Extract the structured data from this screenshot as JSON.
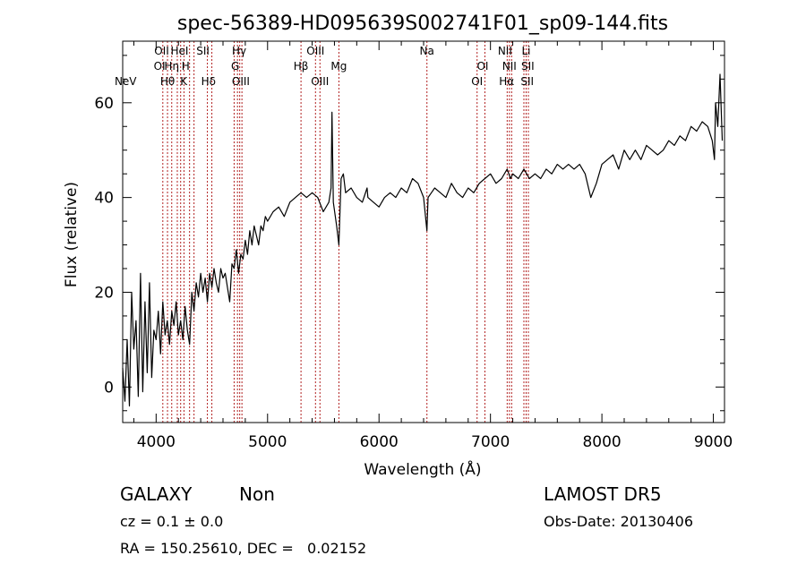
{
  "chart_data": {
    "type": "line",
    "title": "spec-56389-HD095639S002741F01_sp09-144.fits",
    "xlabel": "Wavelength (Å)",
    "ylabel": "Flux (relative)",
    "xlim": [
      3700,
      9100
    ],
    "ylim": [
      -7.5,
      73
    ],
    "xticks": [
      4000,
      5000,
      6000,
      7000,
      8000,
      9000
    ],
    "yticks": [
      0,
      20,
      40,
      60
    ],
    "grid": false,
    "line_color": "#000000",
    "marker_color": "#b22222",
    "series": [
      {
        "x": [
          3700,
          3720,
          3740,
          3760,
          3780,
          3800,
          3820,
          3840,
          3860,
          3880,
          3900,
          3920,
          3940,
          3960,
          3980,
          4000,
          4020,
          4040,
          4060,
          4080,
          4100,
          4120,
          4140,
          4160,
          4180,
          4200,
          4220,
          4240,
          4260,
          4280,
          4300,
          4320,
          4340,
          4360,
          4380,
          4400,
          4420,
          4440,
          4460,
          4480,
          4500,
          4520,
          4540,
          4560,
          4580,
          4600,
          4620,
          4640,
          4660,
          4680,
          4700,
          4720,
          4740,
          4760,
          4780,
          4800,
          4820,
          4840,
          4860,
          4880,
          4900,
          4920,
          4940,
          4960,
          4980,
          5000,
          5050,
          5100,
          5150,
          5200,
          5250,
          5300,
          5350,
          5400,
          5450,
          5500,
          5550,
          5570,
          5578,
          5590,
          5620,
          5640,
          5660,
          5680,
          5700,
          5750,
          5800,
          5850,
          5893,
          5900,
          5950,
          6000,
          6050,
          6100,
          6150,
          6200,
          6250,
          6300,
          6350,
          6400,
          6430,
          6440,
          6470,
          6500,
          6550,
          6600,
          6650,
          6700,
          6750,
          6800,
          6850,
          6900,
          6950,
          7000,
          7050,
          7100,
          7150,
          7180,
          7200,
          7250,
          7300,
          7350,
          7400,
          7450,
          7500,
          7550,
          7600,
          7650,
          7700,
          7750,
          7800,
          7850,
          7900,
          7950,
          8000,
          8050,
          8100,
          8150,
          8200,
          8250,
          8300,
          8350,
          8400,
          8450,
          8500,
          8550,
          8600,
          8650,
          8700,
          8750,
          8800,
          8850,
          8900,
          8950,
          8990,
          9010,
          9020,
          9040,
          9060,
          9080
        ],
        "y": [
          4,
          -3,
          10,
          -4,
          20,
          8,
          14,
          -2,
          24,
          -1,
          18,
          3,
          22,
          2,
          12,
          10,
          16,
          7,
          18,
          11,
          14,
          9,
          16,
          13,
          18,
          11,
          14,
          10,
          17,
          12,
          9,
          20,
          16,
          22,
          19,
          24,
          20,
          23,
          18,
          24,
          21,
          25,
          22,
          20,
          25,
          23,
          24,
          21,
          18,
          26,
          25,
          29,
          24,
          28,
          27,
          31,
          28,
          33,
          30,
          34,
          32,
          30,
          34,
          33,
          36,
          35,
          37,
          38,
          36,
          39,
          40,
          41,
          40,
          41,
          40,
          37,
          39,
          42,
          58,
          39,
          34,
          30,
          44,
          45,
          41,
          42,
          40,
          39,
          42,
          40,
          39,
          38,
          40,
          41,
          40,
          42,
          41,
          44,
          43,
          40,
          33,
          40,
          41,
          42,
          41,
          40,
          43,
          41,
          40,
          42,
          41,
          43,
          44,
          45,
          43,
          44,
          46,
          44,
          45,
          44,
          46,
          44,
          45,
          44,
          46,
          45,
          47,
          46,
          47,
          46,
          47,
          45,
          40,
          43,
          47,
          48,
          49,
          46,
          50,
          48,
          50,
          48,
          51,
          50,
          49,
          50,
          52,
          51,
          53,
          52,
          55,
          54,
          56,
          55,
          52,
          48,
          60,
          55,
          66,
          52
        ]
      }
    ],
    "line_markers": [
      {
        "label": "NeV",
        "x": 3726,
        "row": 4
      },
      {
        "label": "OII",
        "x": 4050,
        "row": 1
      },
      {
        "label": "OI",
        "x": 4030,
        "row": 2
      },
      {
        "label": "Hθ",
        "x": 4102,
        "row": 3
      },
      {
        "label": "Hη",
        "x": 4140,
        "row": 2
      },
      {
        "label": "HeI",
        "x": 4210,
        "row": 1
      },
      {
        "label": "H",
        "x": 4265,
        "row": 2
      },
      {
        "label": "K",
        "x": 4248,
        "row": 3
      },
      {
        "label": "SII",
        "x": 4420,
        "row": 1
      },
      {
        "label": "Hδ",
        "x": 4470,
        "row": 3
      },
      {
        "label": "Hγ",
        "x": 4745,
        "row": 1
      },
      {
        "label": "G",
        "x": 4710,
        "row": 2
      },
      {
        "label": "OIII",
        "x": 4760,
        "row": 3
      },
      {
        "label": "Hβ",
        "x": 5300,
        "row": 2
      },
      {
        "label": "OIII",
        "x": 5430,
        "row": 1
      },
      {
        "label": "OIII",
        "x": 5470,
        "row": 3
      },
      {
        "label": "Mg",
        "x": 5640,
        "row": 2
      },
      {
        "label": "Na",
        "x": 6430,
        "row": 1
      },
      {
        "label": "OI",
        "x": 6930,
        "row": 2
      },
      {
        "label": "OI",
        "x": 6880,
        "row": 3
      },
      {
        "label": "NII",
        "x": 7130,
        "row": 1
      },
      {
        "label": "NII",
        "x": 7170,
        "row": 2
      },
      {
        "label": "Hα",
        "x": 7145,
        "row": 3
      },
      {
        "label": "Li",
        "x": 7320,
        "row": 1
      },
      {
        "label": "SII",
        "x": 7335,
        "row": 2
      },
      {
        "label": "SII",
        "x": 7330,
        "row": 3
      }
    ],
    "vlines": [
      4060,
      4102,
      4140,
      4190,
      4220,
      4250,
      4300,
      4340,
      4460,
      4500,
      4700,
      4730,
      4750,
      4770,
      5300,
      5430,
      5470,
      5640,
      6430,
      6880,
      6950,
      7150,
      7170,
      7190,
      7300,
      7320,
      7340
    ]
  },
  "info": {
    "object_class": "GALAXY",
    "subclass": "Non",
    "cz": "cz = 0.1 ± 0.0",
    "radec": "RA = 150.25610, DEC =   0.02152",
    "survey": "LAMOST DR5",
    "obs_date": "Obs-Date: 20130406"
  }
}
